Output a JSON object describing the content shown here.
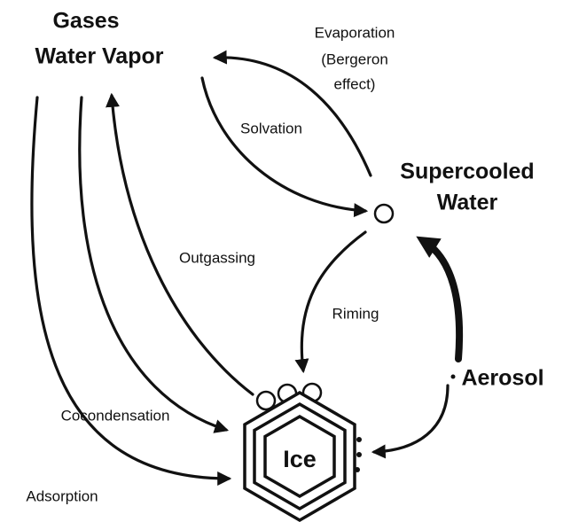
{
  "nodes": [
    {
      "label": "Gases"
    },
    {
      "label": "Water Vapor"
    },
    {
      "label": "Supercooled"
    },
    {
      "label": "Water"
    },
    {
      "label": "Aerosol"
    },
    {
      "label": "Ice"
    }
  ],
  "edges": [
    {
      "label": "Evaporation"
    },
    {
      "label": "(Bergeron"
    },
    {
      "label": "effect)"
    },
    {
      "label": "Solvation"
    },
    {
      "label": "Outgassing"
    },
    {
      "label": "Riming"
    },
    {
      "label": "Cocondensation"
    },
    {
      "label": "Adsorption"
    }
  ]
}
